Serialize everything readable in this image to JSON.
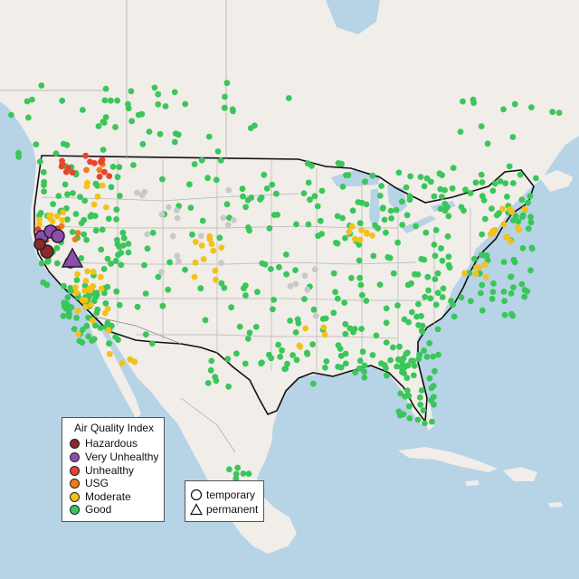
{
  "map": {
    "type": "air-quality-monitor-map",
    "region": "Contiguous United States with southern Canada and northern Mexico",
    "colors": {
      "water": "#b7d3e6",
      "land": "#f1ede9",
      "Hazardous": "#8b2a2a",
      "Very Unhealthy": "#8e4bb0",
      "Unhealthy": "#e8432f",
      "USG": "#ef7b1a",
      "Moderate": "#f2c11a",
      "Good": "#3ac65a",
      "No data": "#c9c9c9"
    }
  },
  "legend": {
    "title": "Air Quality Index",
    "items": [
      "Hazardous",
      "Very Unhealthy",
      "Unhealthy",
      "USG",
      "Moderate",
      "Good"
    ]
  },
  "site_legend": {
    "items": [
      {
        "label": "temporary",
        "shape": "circle-icon"
      },
      {
        "label": "permanent",
        "shape": "triangle-icon"
      }
    ]
  }
}
